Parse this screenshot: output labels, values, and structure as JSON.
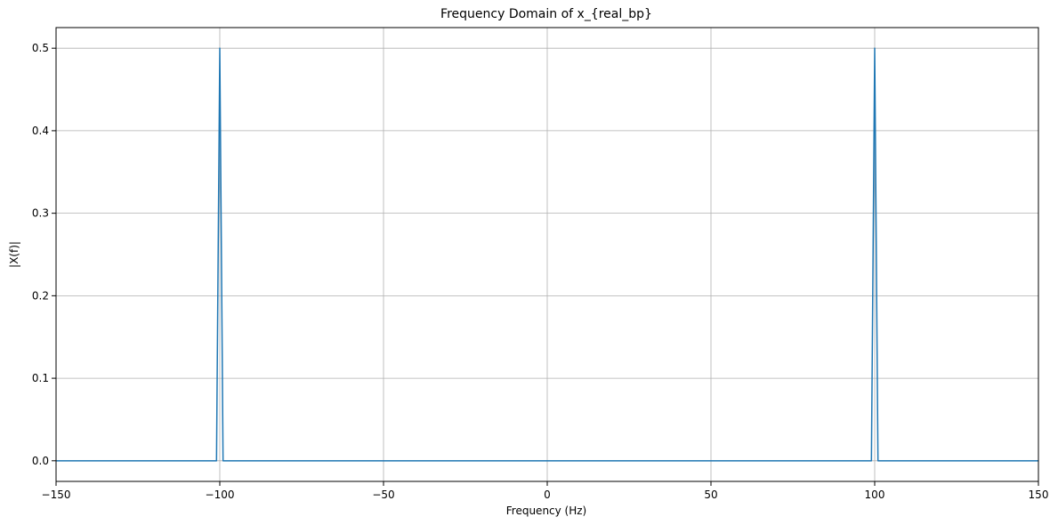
{
  "chart_data": {
    "type": "line",
    "title": "Frequency Domain of x_{real_bp}",
    "xlabel": "Frequency (Hz)",
    "ylabel": "|X(f)|",
    "xlim": [
      -150,
      150
    ],
    "ylim": [
      -0.025,
      0.525
    ],
    "xticks": [
      -150,
      -100,
      -50,
      0,
      50,
      100,
      150
    ],
    "xtick_labels": [
      "−150",
      "−100",
      "−50",
      "0",
      "50",
      "100",
      "150"
    ],
    "yticks": [
      0.0,
      0.1,
      0.2,
      0.3,
      0.4,
      0.5
    ],
    "ytick_labels": [
      "0.0",
      "0.1",
      "0.2",
      "0.3",
      "0.4",
      "0.5"
    ],
    "grid": true,
    "series": [
      {
        "color": "#1f77b4",
        "x": [
          -150,
          -101,
          -100,
          -99,
          99,
          100,
          101,
          150
        ],
        "y": [
          0,
          0,
          0.5,
          0,
          0,
          0.5,
          0,
          0
        ]
      }
    ]
  }
}
